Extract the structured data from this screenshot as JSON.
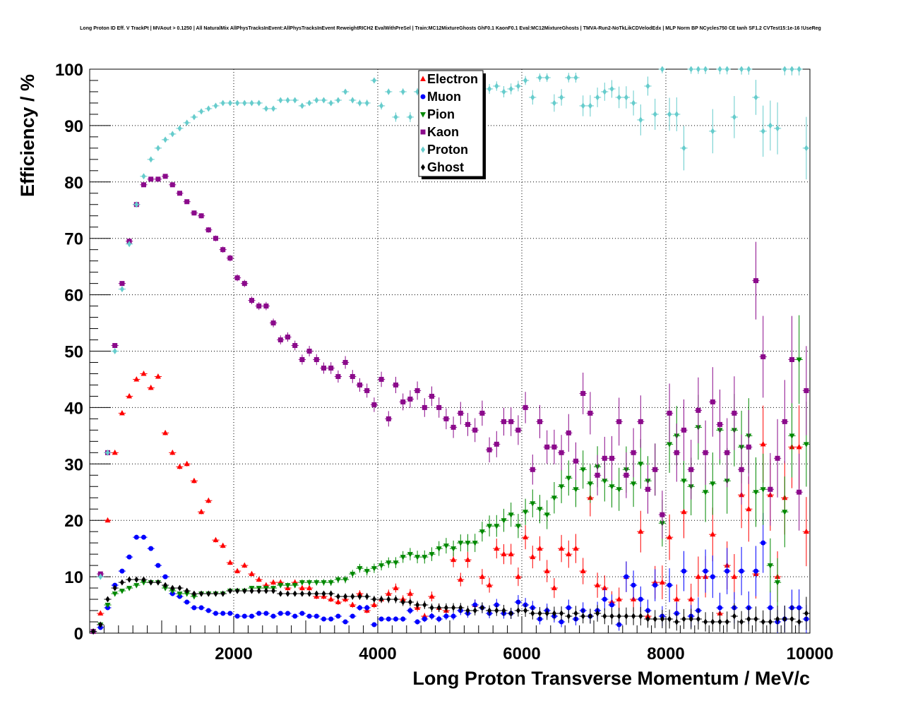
{
  "chart_data": {
    "type": "scatter",
    "title": "Long Proton ID Eff. V TrackPt | MVAout > 0.1250 | All NaturalMix AllPhysTracksInEvent:AllPhysTracksInEvent ReweightRICH2 EvalWithPreSel | Train:MC12MixtureGhosts GhF0.1 KaonF0.1 Eval:MC12MixtureGhosts | TMVA-Run2-NoTkLikCDVelodEdx | MLP Norm BP NCycles750 CE tanh SF1.2 CVTest15:1e-16 !UseReg",
    "xlabel": "Long Proton Transverse Momentum / MeV/c",
    "ylabel": "Efficiency / %",
    "xlim": [
      0,
      10000
    ],
    "ylim": [
      0,
      100
    ],
    "x_ticks": [
      "2000",
      "4000",
      "6000",
      "8000",
      "10000"
    ],
    "y_ticks": [
      "0",
      "10",
      "20",
      "30",
      "40",
      "50",
      "60",
      "70",
      "80",
      "90",
      "100"
    ],
    "grid": true,
    "legend_position": "top-center",
    "x": [
      50,
      150,
      250,
      350,
      450,
      550,
      650,
      750,
      850,
      950,
      1050,
      1150,
      1250,
      1350,
      1450,
      1550,
      1650,
      1750,
      1850,
      1950,
      2050,
      2150,
      2250,
      2350,
      2450,
      2550,
      2650,
      2750,
      2850,
      2950,
      3050,
      3150,
      3250,
      3350,
      3450,
      3550,
      3650,
      3750,
      3850,
      3950,
      4050,
      4150,
      4250,
      4350,
      4450,
      4550,
      4650,
      4750,
      4850,
      4950,
      5050,
      5150,
      5250,
      5350,
      5450,
      5550,
      5650,
      5750,
      5850,
      5950,
      6050,
      6150,
      6250,
      6350,
      6450,
      6550,
      6650,
      6750,
      6850,
      6950,
      7050,
      7150,
      7250,
      7350,
      7450,
      7550,
      7650,
      7750,
      7850,
      7950,
      8050,
      8150,
      8250,
      8350,
      8450,
      8550,
      8650,
      8750,
      8850,
      8950,
      9050,
      9150,
      9250,
      9350,
      9450,
      9550,
      9650,
      9750,
      9850,
      9950
    ],
    "series": [
      {
        "name": "Electron",
        "color": "#ff0000",
        "marker": "triangle-up",
        "values": [
          0.3,
          3.5,
          20,
          32,
          39,
          42,
          45,
          46,
          43.5,
          45.5,
          35.5,
          32,
          29.5,
          30,
          27,
          21.5,
          23.5,
          16.5,
          15.5,
          12.5,
          11,
          12,
          10.5,
          9.5,
          8.5,
          9,
          9,
          8,
          9,
          8,
          8,
          6.5,
          6.5,
          6,
          5.5,
          6,
          5,
          7,
          4,
          5,
          6,
          7,
          8,
          6,
          7,
          4.5,
          3,
          6.5,
          4.5,
          4,
          13,
          9.5,
          13,
          5,
          10,
          8.5,
          15,
          14,
          14,
          10,
          17,
          13.5,
          15,
          11,
          8,
          15,
          14,
          15,
          11,
          24,
          8.5,
          8,
          5.5,
          6,
          10,
          6,
          18,
          3,
          9,
          9,
          17,
          6,
          21.5,
          6,
          10,
          10,
          17.5,
          3.5,
          12,
          10,
          24.5,
          22,
          10.5,
          33.5,
          24.5,
          10,
          24,
          33,
          33,
          18
        ]
      },
      {
        "name": "Muon",
        "color": "#0000ff",
        "marker": "circle",
        "values": [
          0.3,
          1,
          4.5,
          8.5,
          11,
          13.5,
          17,
          17,
          15,
          12,
          10,
          7,
          6.5,
          5.5,
          4.5,
          4.5,
          4,
          3.5,
          3.5,
          3.5,
          3,
          3,
          3,
          3.5,
          3.5,
          3,
          3.5,
          3.5,
          3,
          3.5,
          3,
          3,
          2.5,
          2.5,
          3,
          2,
          3,
          4.5,
          4.5,
          1.5,
          2.5,
          2.5,
          2.5,
          2.5,
          4,
          2,
          2.5,
          3,
          2.5,
          3,
          3,
          4,
          3.5,
          5,
          4.5,
          3.5,
          5,
          3.5,
          3.5,
          5.5,
          5,
          4.5,
          2.5,
          4,
          3,
          2,
          4.5,
          2.5,
          4,
          3,
          4,
          6,
          5,
          1.5,
          10,
          8.5,
          6,
          4,
          8.5,
          3,
          8.5,
          3.5,
          11,
          3,
          4,
          11,
          10,
          4.5,
          11,
          4.5,
          11,
          4.5,
          11,
          16,
          4.5,
          2,
          2.5,
          4.5,
          4.5,
          2.5
        ]
      },
      {
        "name": "Pion",
        "color": "#008800",
        "marker": "triangle-down",
        "values": [
          0.3,
          1.5,
          5,
          7,
          7.5,
          8,
          8.5,
          9,
          9,
          9,
          8,
          7.5,
          7,
          7,
          6.5,
          7,
          7,
          7,
          7,
          7.5,
          7.5,
          7.5,
          8,
          8,
          8,
          8,
          8.5,
          8.5,
          8.5,
          9,
          9,
          9,
          9,
          9,
          9.5,
          9.5,
          10.5,
          11.5,
          11,
          11.5,
          12,
          12.5,
          12.5,
          13.5,
          14,
          13.5,
          13.5,
          14,
          15,
          15.5,
          15,
          16,
          16,
          16,
          18,
          19,
          19,
          20,
          21,
          19,
          21.5,
          23,
          22,
          21,
          24,
          26,
          27.5,
          25.5,
          29,
          26.5,
          29.5,
          27,
          26,
          25.5,
          29,
          26.5,
          30,
          27,
          29,
          19.5,
          33.5,
          35,
          27,
          26,
          36.5,
          25,
          26.5,
          36,
          27,
          36,
          33,
          35,
          25,
          25.5,
          12,
          9,
          21.5,
          35,
          48.5,
          33.5
        ]
      },
      {
        "name": "Kaon",
        "color": "#8b0a8b",
        "marker": "square",
        "values": [
          0.3,
          10.5,
          32,
          51,
          62,
          69.5,
          76,
          79.5,
          80.5,
          80.5,
          81,
          79.5,
          78,
          76.5,
          74.5,
          74,
          71.5,
          70,
          68,
          66.5,
          63,
          62,
          59,
          58,
          58,
          55,
          52,
          52.5,
          51,
          48.5,
          50,
          48.5,
          47,
          47,
          45.5,
          48,
          45.5,
          44,
          43,
          40.5,
          45,
          38,
          44,
          41,
          41.5,
          43,
          40,
          42,
          40,
          38,
          36.5,
          39,
          37,
          36,
          39,
          32.5,
          33.5,
          37.5,
          37.5,
          36,
          40,
          29,
          37.5,
          33,
          33,
          32,
          35.5,
          30.5,
          42.5,
          39,
          28,
          31,
          31,
          37.5,
          28,
          32,
          37.5,
          25.5,
          29,
          21,
          39,
          32,
          36,
          29,
          39.5,
          32,
          41,
          37,
          32,
          39,
          29,
          33,
          62.5,
          49,
          25.5,
          31,
          37.5,
          48.5,
          25,
          43
        ]
      },
      {
        "name": "Proton",
        "color": "#66cccc",
        "marker": "diamond",
        "values": [
          0.3,
          10,
          32,
          50,
          61,
          69,
          76,
          81,
          84,
          86,
          87.5,
          88.5,
          89.5,
          90.5,
          91.5,
          92.5,
          93,
          93.5,
          94,
          94,
          94,
          94,
          94,
          94,
          93,
          93,
          94.5,
          94.5,
          94.5,
          93.5,
          94,
          94.5,
          94.5,
          94,
          94.5,
          96,
          94.5,
          94,
          94,
          98,
          93.5,
          96,
          91.5,
          96,
          91.5,
          96,
          95,
          96,
          93.5,
          96,
          95,
          94,
          95,
          93,
          95.5,
          96.5,
          97,
          96,
          96.5,
          97,
          98,
          95,
          98.5,
          98.5,
          94,
          95,
          98.5,
          98.5,
          93.5,
          93.5,
          95,
          96,
          96.5,
          95,
          95,
          94,
          91,
          97,
          92,
          100,
          92,
          92,
          86,
          100,
          100,
          100,
          89,
          100,
          100,
          91.5,
          100,
          100,
          95,
          89,
          90,
          89.5,
          100,
          100,
          100,
          86
        ]
      },
      {
        "name": "Ghost",
        "color": "#000000",
        "marker": "diamond",
        "values": [
          0.3,
          1.5,
          6,
          8,
          9,
          9.5,
          9.5,
          9.5,
          9,
          9,
          8.5,
          8,
          8,
          7.5,
          7,
          7,
          7,
          7,
          7,
          7.5,
          7.5,
          7.5,
          7.5,
          7.5,
          7.5,
          7.5,
          7,
          7,
          7,
          7,
          7,
          7,
          7,
          7,
          6.5,
          6.5,
          6.5,
          6.5,
          6.5,
          6,
          6,
          6,
          6,
          5.5,
          5.5,
          5,
          5,
          4.5,
          4.5,
          4.5,
          4.5,
          4.5,
          4,
          4,
          4.5,
          4,
          4,
          4,
          3.5,
          4,
          4,
          3.5,
          3.5,
          3.5,
          3.5,
          3.5,
          3,
          3.5,
          3,
          3,
          3.5,
          3,
          3,
          3,
          3,
          3,
          3,
          2.5,
          2.5,
          2.5,
          2.5,
          2,
          2.5,
          2.5,
          2.5,
          2,
          2,
          2,
          2,
          3,
          2,
          2.5,
          2.5,
          2,
          2,
          2.5,
          2.5,
          2.5,
          2,
          3.5
        ]
      }
    ]
  }
}
